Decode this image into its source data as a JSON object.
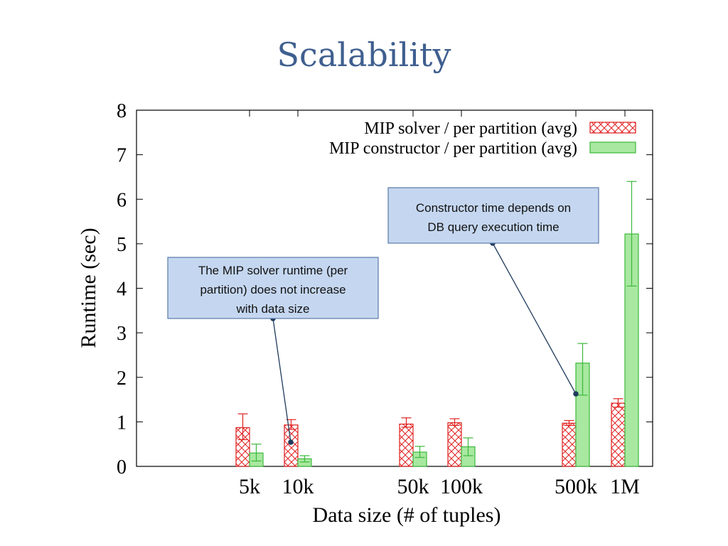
{
  "slide": {
    "title": "Scalability"
  },
  "colors": {
    "solver": "#e0201f",
    "constructor_fill": "#a8e8a0",
    "constructor_stroke": "#3cb83c",
    "callout_fill": "#c5d7f0",
    "callout_stroke": "#5a7aa8",
    "callout_line": "#1f3b5c"
  },
  "callouts": [
    {
      "lines": [
        "The MIP solver runtime (per",
        "partition) does not increase",
        "with data size"
      ]
    },
    {
      "lines": [
        "Constructor time depends on",
        "DB query execution time"
      ]
    }
  ],
  "chart_data": {
    "type": "bar",
    "title": "",
    "xlabel": "Data size (# of tuples)",
    "ylabel": "Runtime (sec)",
    "ylim": [
      0,
      8
    ],
    "yticks": [
      0,
      1,
      2,
      3,
      4,
      5,
      6,
      7,
      8
    ],
    "grid": false,
    "legend_position": "top-right",
    "categories": [
      "5k",
      "10k",
      "50k",
      "100k",
      "500k",
      "1M"
    ],
    "series": [
      {
        "name": "MIP solver / per partition (avg)",
        "values": [
          0.87,
          0.93,
          0.95,
          0.98,
          0.97,
          1.42
        ],
        "err_low": [
          0.6,
          0.83,
          0.88,
          0.92,
          0.92,
          1.33
        ],
        "err_high": [
          1.18,
          1.05,
          1.09,
          1.07,
          1.03,
          1.52
        ]
      },
      {
        "name": "MIP constructor / per partition (avg)",
        "values": [
          0.3,
          0.17,
          0.32,
          0.44,
          2.32,
          5.22
        ],
        "err_low": [
          0.12,
          0.1,
          0.2,
          0.24,
          1.6,
          4.05
        ],
        "err_high": [
          0.5,
          0.24,
          0.45,
          0.64,
          2.76,
          6.4
        ]
      }
    ]
  }
}
